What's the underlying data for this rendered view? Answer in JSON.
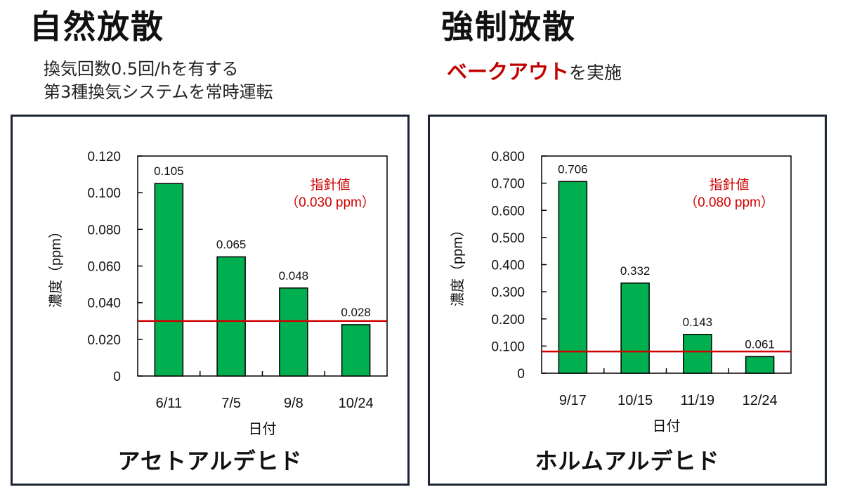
{
  "left": {
    "heading": "自然放散",
    "description_lines": [
      "換気回数0.5回/hを有する",
      "第3種換気システムを常時運転"
    ]
  },
  "right": {
    "heading": "強制放散",
    "description_emphasis": "ベークアウト",
    "description_rest": "を実施"
  },
  "chart_data": [
    {
      "type": "bar",
      "title": "アセトアルデヒド",
      "xlabel": "日付",
      "ylabel": "濃度（ppm）",
      "categories": [
        "6/11",
        "7/5",
        "9/8",
        "10/24"
      ],
      "values": [
        0.105,
        0.065,
        0.048,
        0.028
      ],
      "value_labels": [
        "0.105",
        "0.065",
        "0.048",
        "0.028"
      ],
      "ylim": [
        0,
        0.12
      ],
      "yticks": [
        0,
        0.02,
        0.04,
        0.06,
        0.08,
        0.1,
        0.12
      ],
      "ytick_labels": [
        "0",
        "0.020",
        "0.040",
        "0.060",
        "0.080",
        "0.100",
        "0.120"
      ],
      "guideline": {
        "value": 0.03,
        "label_line1": "指針値",
        "label_line2": "（0.030 ppm）",
        "color": "#d00000"
      },
      "bar_color": "#00b050",
      "grid": false
    },
    {
      "type": "bar",
      "title": "ホルムアルデヒド",
      "xlabel": "日付",
      "ylabel": "濃度（ppm）",
      "categories": [
        "9/17",
        "10/15",
        "11/19",
        "12/24"
      ],
      "values": [
        0.706,
        0.332,
        0.143,
        0.061
      ],
      "value_labels": [
        "0.706",
        "0.332",
        "0.143",
        "0.061"
      ],
      "ylim": [
        0,
        0.8
      ],
      "yticks": [
        0,
        0.1,
        0.2,
        0.3,
        0.4,
        0.5,
        0.6,
        0.7,
        0.8
      ],
      "ytick_labels": [
        "0",
        "0.100",
        "0.200",
        "0.300",
        "0.400",
        "0.500",
        "0.600",
        "0.700",
        "0.800"
      ],
      "guideline": {
        "value": 0.08,
        "label_line1": "指針値",
        "label_line2": "（0.080 ppm）",
        "color": "#d00000"
      },
      "bar_color": "#00b050",
      "grid": false
    }
  ]
}
